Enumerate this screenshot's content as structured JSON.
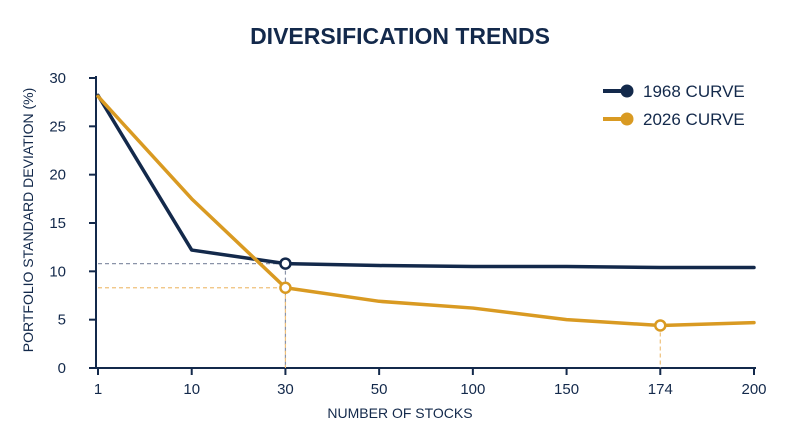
{
  "chart_data": {
    "type": "line",
    "title": "DIVERSIFICATION TRENDS",
    "xlabel": "NUMBER OF STOCKS",
    "ylabel": "PORTFOLIO STANDARD DEVIATION (%)",
    "x_categories": [
      "1",
      "10",
      "30",
      "50",
      "100",
      "150",
      "174",
      "200"
    ],
    "y_ticks": [
      0,
      5,
      10,
      15,
      20,
      25,
      30
    ],
    "ylim": [
      0,
      30
    ],
    "grid": false,
    "legend_position": "top-right",
    "series": [
      {
        "name": "1968 CURVE",
        "color": "#13294b",
        "points": [
          {
            "x": 1,
            "y": 28.2
          },
          {
            "x": 10,
            "y": 12.2
          },
          {
            "x": 30,
            "y": 10.8
          },
          {
            "x": 50,
            "y": 10.6
          },
          {
            "x": 100,
            "y": 10.5
          },
          {
            "x": 150,
            "y": 10.5
          },
          {
            "x": 174,
            "y": 10.4
          },
          {
            "x": 200,
            "y": 10.4
          }
        ],
        "highlight": [
          {
            "x": 30,
            "y": 10.8
          }
        ]
      },
      {
        "name": "2026 CURVE",
        "color": "#d99a22",
        "points": [
          {
            "x": 1,
            "y": 28.1
          },
          {
            "x": 10,
            "y": 17.5
          },
          {
            "x": 30,
            "y": 8.3
          },
          {
            "x": 50,
            "y": 6.9
          },
          {
            "x": 100,
            "y": 6.2
          },
          {
            "x": 150,
            "y": 5.0
          },
          {
            "x": 174,
            "y": 4.4
          },
          {
            "x": 200,
            "y": 4.7
          }
        ],
        "highlight": [
          {
            "x": 30,
            "y": 8.3
          },
          {
            "x": 174,
            "y": 4.4
          }
        ]
      }
    ]
  }
}
